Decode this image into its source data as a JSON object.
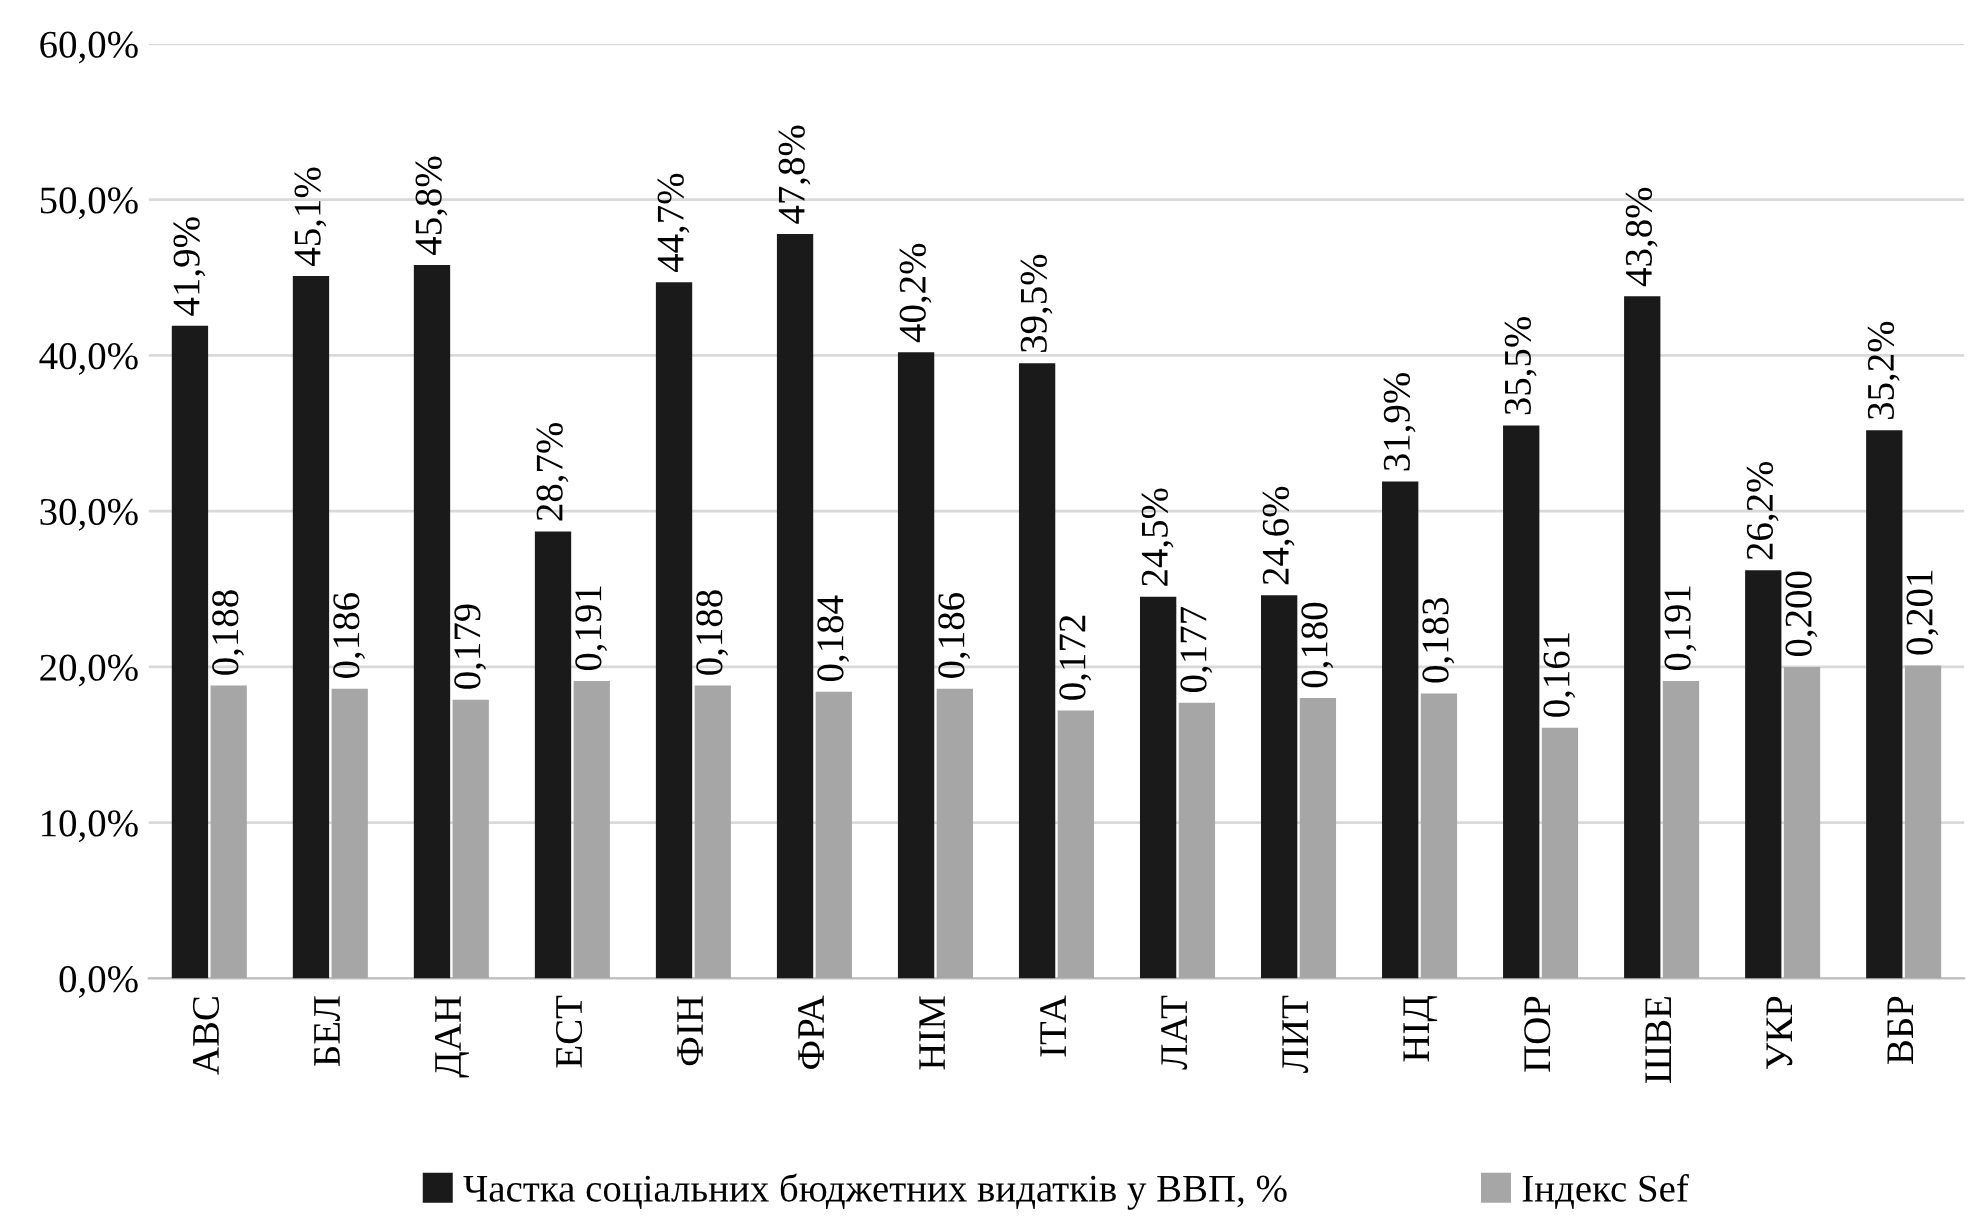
{
  "chart_data": {
    "type": "bar",
    "categories": [
      "АВС",
      "БЕЛ",
      "ДАН",
      "ЕСТ",
      "ФІН",
      "ФРА",
      "НІМ",
      "ІТА",
      "ЛАТ",
      "ЛИТ",
      "НІД",
      "ПОР",
      "ШВЕ",
      "УКР",
      "ВБР"
    ],
    "series": [
      {
        "name": "Частка соціальних бюджетних видатків у ВВП, %",
        "color": "#1a1a1a",
        "values": [
          0.419,
          0.451,
          0.458,
          0.287,
          0.447,
          0.478,
          0.402,
          0.395,
          0.245,
          0.246,
          0.319,
          0.355,
          0.438,
          0.262,
          0.352
        ],
        "value_labels": [
          "41,9%",
          "45,1%",
          "45,8%",
          "28,7%",
          "44,7%",
          "47,8%",
          "40,2%",
          "39,5%",
          "24,5%",
          "24,6%",
          "31,9%",
          "35,5%",
          "43,8%",
          "26,2%",
          "35,2%"
        ]
      },
      {
        "name": "Індекс Sef",
        "color": "#a6a6a6",
        "values": [
          0.188,
          0.186,
          0.179,
          0.191,
          0.188,
          0.184,
          0.186,
          0.172,
          0.177,
          0.18,
          0.183,
          0.161,
          0.191,
          0.2,
          0.201
        ],
        "value_labels": [
          "0,188",
          "0,186",
          "0,179",
          "0,191",
          "0,188",
          "0,184",
          "0,186",
          "0,172",
          "0,177",
          "0,180",
          "0,183",
          "0,161",
          "0,191",
          "0,200",
          "0,201"
        ]
      }
    ],
    "ylim": [
      0,
      0.6
    ],
    "yticks": [
      {
        "value": 0,
        "label": "0,0%"
      },
      {
        "value": 0.1,
        "label": "10,0%"
      },
      {
        "value": 0.2,
        "label": "20,0%"
      },
      {
        "value": 0.3,
        "label": "30,0%"
      },
      {
        "value": 0.4,
        "label": "40,0%"
      },
      {
        "value": 0.5,
        "label": "50,0%"
      },
      {
        "value": 0.6,
        "label": "60,0%"
      }
    ],
    "grid": "y",
    "legend": "bottom"
  }
}
